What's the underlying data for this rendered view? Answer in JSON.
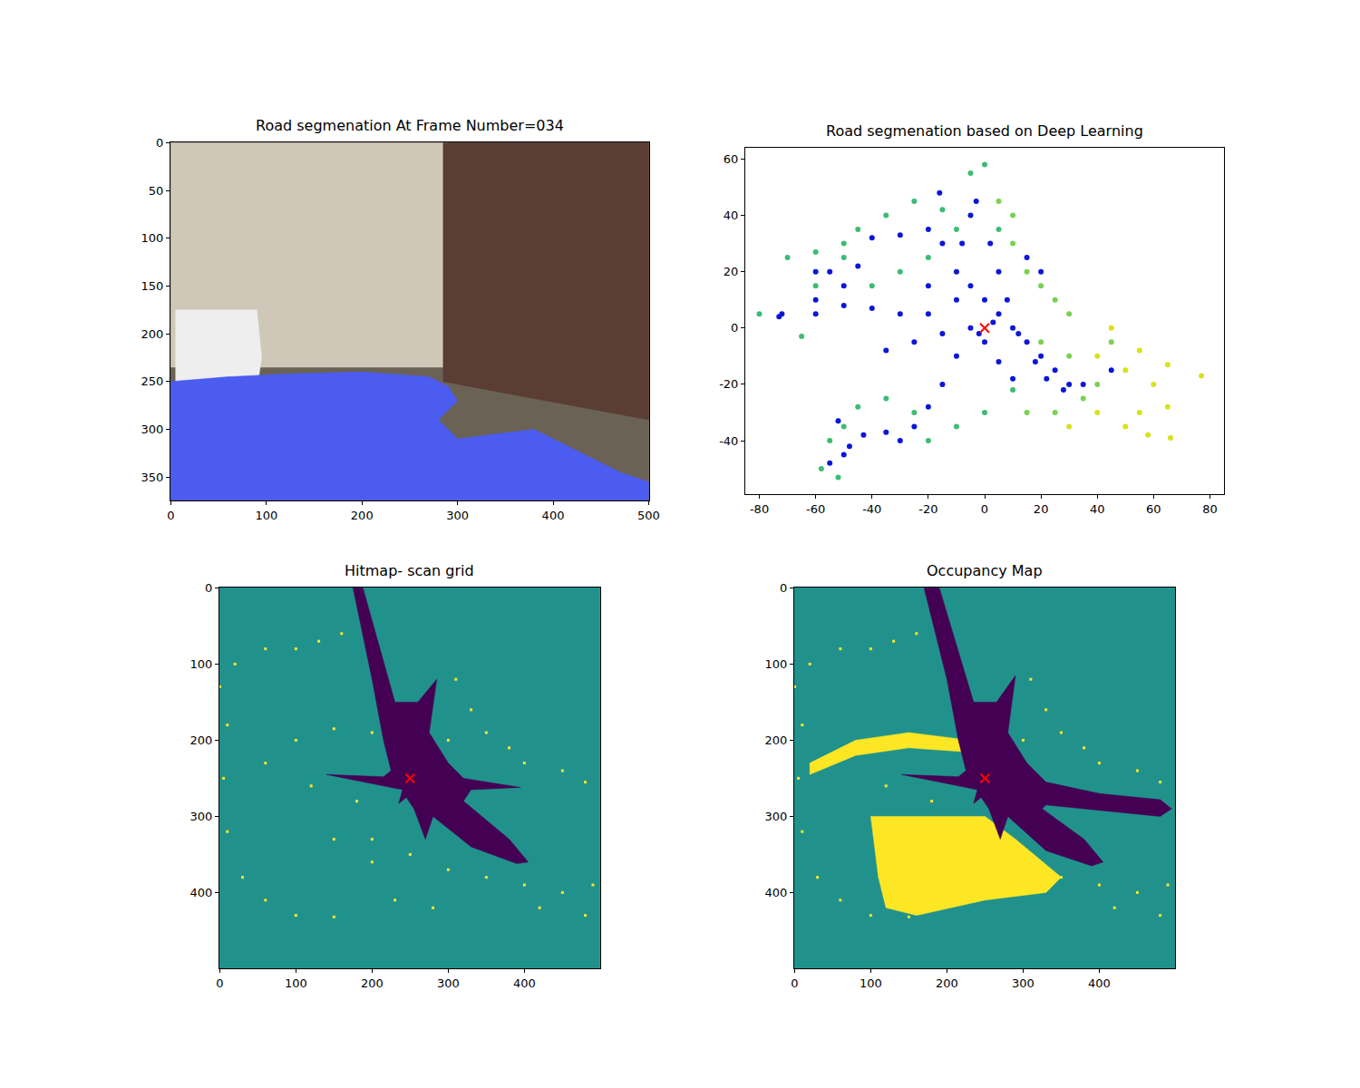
{
  "chart_data": [
    {
      "type": "image",
      "title": "Road segmenation At Frame Number=034",
      "color": "#6b6256",
      "xlim": [
        -0.5,
        500.5
      ],
      "ylim": [
        374.5,
        -0.5
      ],
      "xticks": [
        0,
        100,
        200,
        300,
        400,
        500
      ],
      "yticks": [
        0,
        50,
        100,
        150,
        200,
        250,
        300,
        350
      ],
      "series": [
        {
          "type": "area",
          "color": "#cfc8b8",
          "x": [
            0,
            290,
            290,
            0
          ],
          "y": [
            0,
            0,
            235,
            235
          ]
        },
        {
          "type": "area",
          "color": "#5a3d33",
          "x": [
            285,
            500,
            500,
            285
          ],
          "y": [
            0,
            0,
            290,
            250
          ]
        },
        {
          "type": "area",
          "color": "#eeeeee",
          "x": [
            5,
            90,
            95,
            90,
            5
          ],
          "y": [
            175,
            175,
            225,
            258,
            262
          ]
        },
        {
          "type": "area",
          "color": "#4c5cf0",
          "x": [
            0,
            0,
            500,
            500,
            470,
            440,
            400,
            380,
            340,
            300,
            280,
            300,
            290,
            270,
            200,
            120,
            60,
            20,
            0
          ],
          "y": [
            265,
            374,
            374,
            355,
            345,
            330,
            310,
            300,
            305,
            310,
            290,
            270,
            255,
            245,
            240,
            242,
            245,
            248,
            250
          ]
        }
      ]
    },
    {
      "type": "scatter",
      "title": "Road segmenation based on Deep Learning",
      "xlim": [
        -85,
        85
      ],
      "ylim": [
        -59,
        64
      ],
      "xticks": [
        -80,
        -60,
        -40,
        -20,
        0,
        20,
        40,
        60,
        80
      ],
      "yticks": [
        -40,
        -20,
        0,
        20,
        40,
        60
      ],
      "series": [
        {
          "type": "scatter",
          "marker": "circle",
          "color": "#3dbc74",
          "x": [
            -80,
            -70,
            -60,
            -50,
            -45,
            -35,
            -25,
            -15,
            -5,
            0,
            -65,
            -55,
            -50,
            -45,
            -35,
            -25,
            -20,
            -10,
            0,
            10,
            -30,
            -20,
            -10,
            5,
            -40,
            -50,
            -60,
            -58,
            -52
          ],
          "y": [
            5,
            25,
            27,
            30,
            35,
            40,
            45,
            42,
            55,
            58,
            -3,
            -40,
            -35,
            -28,
            -25,
            -30,
            -40,
            -35,
            -30,
            -22,
            20,
            25,
            35,
            35,
            15,
            25,
            15,
            -50,
            -53
          ]
        },
        {
          "type": "scatter",
          "marker": "circle",
          "color": "#7ad151",
          "x": [
            10,
            15,
            20,
            25,
            30,
            20,
            30,
            35,
            40,
            45,
            10,
            5,
            25,
            15
          ],
          "y": [
            30,
            20,
            15,
            10,
            5,
            -5,
            -10,
            -25,
            -20,
            -5,
            40,
            45,
            -30,
            -30
          ]
        },
        {
          "type": "scatter",
          "marker": "circle",
          "color": "#d8e219",
          "x": [
            40,
            50,
            60,
            65,
            77,
            55,
            65,
            50,
            58,
            66,
            45,
            55,
            40,
            30
          ],
          "y": [
            -10,
            -15,
            -20,
            -13,
            -17,
            -30,
            -28,
            -35,
            -38,
            -39,
            0,
            -8,
            -30,
            -35
          ]
        },
        {
          "type": "scatter",
          "marker": "circle",
          "color": "#0b16d8",
          "x": [
            -10,
            -5,
            0,
            5,
            10,
            15,
            20,
            25,
            30,
            -8,
            -5,
            -3,
            2,
            5,
            8,
            12,
            18,
            22,
            28,
            35,
            -20,
            -30,
            -40,
            -50,
            -60,
            -15,
            -25,
            -35,
            -10,
            -15,
            -20,
            -25,
            -30,
            -35,
            -43,
            -52,
            -40,
            -30,
            -20,
            -15,
            -45,
            -50,
            -55,
            -60,
            -72,
            -73,
            -16,
            -60,
            -48,
            -55,
            5,
            10,
            0,
            -5,
            3,
            -2,
            -50,
            15,
            20,
            -10,
            -20,
            45
          ],
          "y": [
            20,
            15,
            10,
            5,
            0,
            -5,
            -10,
            -15,
            -20,
            30,
            40,
            45,
            30,
            20,
            10,
            -2,
            -12,
            -18,
            -22,
            -20,
            5,
            5,
            7,
            8,
            5,
            -2,
            -5,
            -8,
            -10,
            -20,
            -28,
            -35,
            -40,
            -37,
            -38,
            -33,
            32,
            33,
            35,
            30,
            22,
            15,
            20,
            20,
            5,
            4,
            48,
            10,
            -42,
            -48,
            -12,
            -18,
            -5,
            0,
            2,
            -2,
            -45,
            25,
            20,
            10,
            15,
            -15
          ]
        },
        {
          "type": "scatter",
          "marker": "x",
          "color": "#ff0000",
          "x": [
            0
          ],
          "y": [
            0
          ]
        }
      ]
    },
    {
      "type": "heatmap",
      "title": "Hitmap- scan grid",
      "color": "#21918c",
      "xlim": [
        -0.5,
        499.5
      ],
      "ylim": [
        499.5,
        -0.5
      ],
      "xticks": [
        0,
        100,
        200,
        300,
        400
      ],
      "yticks": [
        0,
        100,
        200,
        300,
        400
      ],
      "series": [
        {
          "type": "scatter",
          "marker": "square",
          "color": "#fde725",
          "x": [
            0,
            20,
            60,
            100,
            130,
            160,
            10,
            5,
            10,
            30,
            60,
            100,
            150,
            60,
            100,
            150,
            200,
            120,
            180,
            150,
            200,
            250,
            300,
            350,
            400,
            450,
            490,
            420,
            480,
            300,
            350,
            380,
            400,
            450,
            480,
            330,
            310,
            200,
            230,
            280
          ],
          "y": [
            130,
            100,
            80,
            80,
            70,
            60,
            180,
            250,
            320,
            380,
            410,
            430,
            432,
            230,
            200,
            185,
            190,
            260,
            280,
            330,
            330,
            350,
            370,
            380,
            390,
            400,
            390,
            420,
            430,
            200,
            190,
            210,
            230,
            240,
            255,
            160,
            120,
            360,
            410,
            420
          ]
        },
        {
          "type": "area",
          "color": "#440154",
          "x": [
            175,
            188,
            230,
            260,
            285,
            275,
            300,
            320,
            395,
            330,
            320,
            380,
            405,
            390,
            330,
            280,
            270,
            255,
            245,
            235,
            240,
            140,
            215,
            225,
            215,
            200
          ],
          "y": [
            0,
            0,
            150,
            150,
            120,
            190,
            230,
            250,
            262,
            265,
            280,
            330,
            360,
            362,
            340,
            300,
            330,
            290,
            275,
            283,
            265,
            245,
            248,
            240,
            200,
            120
          ]
        },
        {
          "type": "scatter",
          "marker": "x",
          "color": "#ff0000",
          "x": [
            250
          ],
          "y": [
            250
          ]
        }
      ]
    },
    {
      "type": "heatmap",
      "title": "Occupancy Map",
      "color": "#21918c",
      "xlim": [
        -0.5,
        499.5
      ],
      "ylim": [
        499.5,
        -0.5
      ],
      "xticks": [
        0,
        100,
        200,
        300,
        400
      ],
      "yticks": [
        0,
        100,
        200,
        300,
        400
      ],
      "series": [
        {
          "type": "area",
          "color": "#fde725",
          "x": [
            100,
            200,
            250,
            290,
            350,
            330,
            250,
            160,
            120,
            110
          ],
          "y": [
            300,
            300,
            300,
            330,
            380,
            400,
            410,
            430,
            420,
            380
          ]
        },
        {
          "type": "area",
          "color": "#fde725",
          "x": [
            20,
            80,
            150,
            230,
            220,
            150,
            80,
            20
          ],
          "y": [
            230,
            200,
            190,
            200,
            215,
            210,
            220,
            245
          ]
        },
        {
          "type": "scatter",
          "marker": "square",
          "color": "#fde725",
          "x": [
            0,
            20,
            60,
            100,
            130,
            160,
            10,
            5,
            10,
            30,
            60,
            100,
            150,
            120,
            180,
            300,
            350,
            400,
            450,
            490,
            420,
            480,
            300,
            350,
            380,
            400,
            450,
            480,
            330,
            310
          ],
          "y": [
            130,
            100,
            80,
            80,
            70,
            60,
            180,
            250,
            320,
            380,
            410,
            430,
            432,
            260,
            280,
            370,
            380,
            390,
            400,
            390,
            420,
            430,
            200,
            190,
            210,
            230,
            240,
            255,
            160,
            120
          ]
        },
        {
          "type": "area",
          "color": "#440154",
          "x": [
            170,
            190,
            235,
            265,
            290,
            280,
            305,
            330,
            400,
            480,
            495,
            480,
            400,
            330,
            325,
            380,
            405,
            390,
            330,
            280,
            270,
            255,
            245,
            235,
            240,
            140,
            215,
            225,
            215,
            200
          ],
          "y": [
            0,
            0,
            150,
            150,
            115,
            190,
            230,
            255,
            270,
            278,
            290,
            300,
            292,
            285,
            290,
            330,
            360,
            365,
            345,
            300,
            330,
            290,
            275,
            283,
            265,
            245,
            248,
            240,
            200,
            120
          ]
        },
        {
          "type": "scatter",
          "marker": "x",
          "color": "#ff0000",
          "x": [
            250
          ],
          "y": [
            250
          ]
        }
      ]
    }
  ]
}
